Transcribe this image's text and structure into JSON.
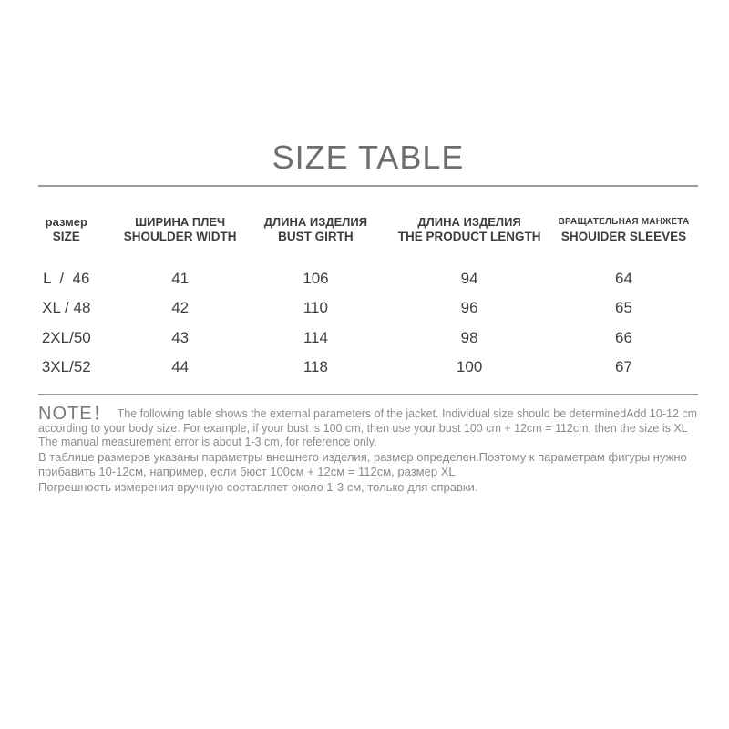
{
  "title": "SIZE TABLE",
  "table": {
    "columns": [
      {
        "ru": "размер",
        "en": "SIZE"
      },
      {
        "ru": "ШИРИНА ПЛЕЧ",
        "en": "SHOULDER WIDTH"
      },
      {
        "ru": "ДЛИНА ИЗДЕЛИЯ",
        "en": "BUST GIRTH"
      },
      {
        "ru": "ДЛИНА ИЗДЕЛИЯ",
        "en": "THE PRODUCT LENGTH"
      },
      {
        "ru": "ВРАЩАТЕЛЬНАЯ МАНЖЕТА",
        "en": "SHOUIDER SLEEVES"
      }
    ],
    "rows": [
      [
        "L  /  46",
        "41",
        "106",
        "94",
        "64"
      ],
      [
        "XL / 48",
        "42",
        "110",
        "96",
        "65"
      ],
      [
        "2XL/50",
        "43",
        "114",
        "98",
        "66"
      ],
      [
        "3XL/52",
        "44",
        "118",
        "100",
        "67"
      ]
    ]
  },
  "note": {
    "label": "NOTE！",
    "en_line1": "The following table shows the external parameters of the jacket. Individual size should be determinedAdd 10-12 cm according to your body size. For example, if your bust is 100 cm, then use your bust 100 cm + 12cm = 112cm, then the size is XL",
    "en_line2": "The manual measurement error is about 1-3 cm, for reference only.",
    "ru_line1": "В таблице размеров указаны параметры внешнего изделия, размер определен.Поэтому к параметрам фигуры нужно прибавить 10-12см, например, если бюст 100см + 12см = 112см, размер XL",
    "ru_line2": "Погрешность измерения вручную составляет около 1-3 см, только для справки."
  }
}
